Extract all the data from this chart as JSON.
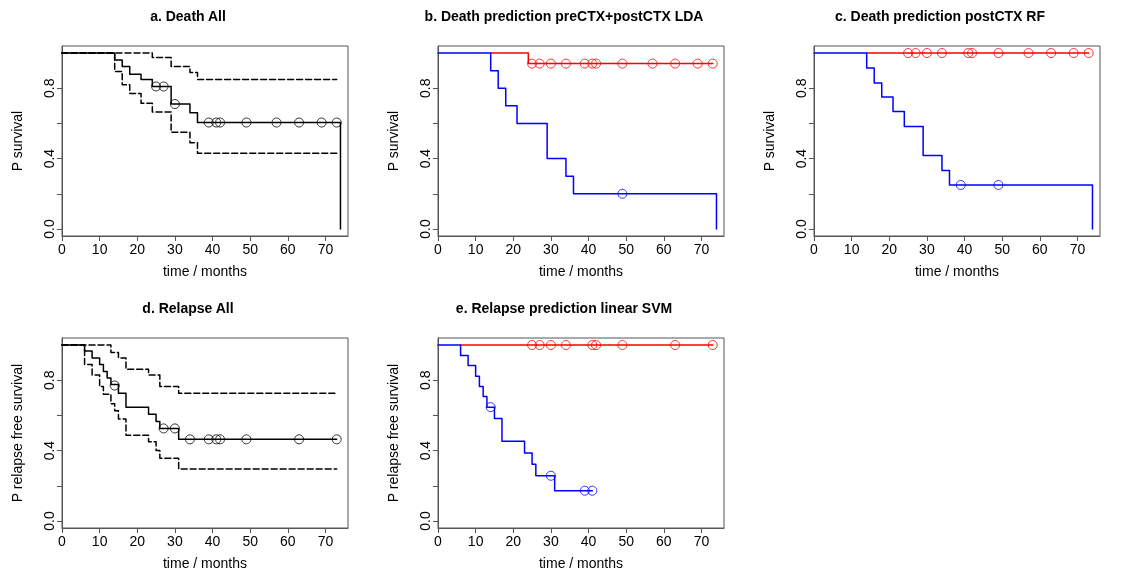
{
  "chart_data": [
    {
      "type": "step",
      "title": "a. Death All",
      "xlabel": "time / months",
      "ylabel": "P survival",
      "xlim": [
        0,
        76
      ],
      "ylim": [
        -0.04,
        1.04
      ],
      "xticks": [
        0,
        10,
        20,
        30,
        40,
        50,
        60,
        70
      ],
      "yticks": [
        {
          "value": 0,
          "label": "0.0"
        },
        {
          "value": 0.2,
          "label": null
        },
        {
          "value": 0.4,
          "label": "0.4"
        },
        {
          "value": 0.6,
          "label": null
        },
        {
          "value": 0.8,
          "label": "0.8"
        }
      ],
      "series": [
        {
          "type": "step",
          "color": "#000000",
          "line_style": "solid",
          "x": [
            0,
            14,
            16,
            18,
            21,
            24,
            29,
            34,
            36,
            74
          ],
          "values": [
            1,
            0.96,
            0.923,
            0.88,
            0.85,
            0.81,
            0.71,
            0.66,
            0.605,
            0
          ]
        },
        {
          "type": "step",
          "color": "#000000",
          "line_style": "dashed",
          "x": [
            0,
            24,
            29,
            34,
            36,
            73
          ],
          "values": [
            1,
            0.975,
            0.923,
            0.89,
            0.85,
            0.85
          ]
        },
        {
          "type": "step",
          "color": "#000000",
          "line_style": "dashed",
          "x": [
            0,
            14,
            16,
            18,
            21,
            24,
            29,
            34,
            36,
            73
          ],
          "values": [
            1,
            0.895,
            0.82,
            0.77,
            0.715,
            0.665,
            0.55,
            0.49,
            0.43,
            0.43
          ]
        },
        {
          "type": "scatter",
          "marker": "circle",
          "color": "#000000",
          "x": [
            25,
            27,
            30,
            39,
            41,
            42,
            49,
            57,
            63,
            69,
            73
          ],
          "values": [
            0.81,
            0.81,
            0.71,
            0.605,
            0.605,
            0.605,
            0.605,
            0.605,
            0.605,
            0.605,
            0.605
          ]
        }
      ]
    },
    {
      "type": "step",
      "title": "b. Death prediction preCTX+postCTX LDA",
      "xlabel": "time / months",
      "ylabel": "P survival",
      "xlim": [
        0,
        76
      ],
      "ylim": [
        -0.04,
        1.04
      ],
      "xticks": [
        0,
        10,
        20,
        30,
        40,
        50,
        60,
        70
      ],
      "yticks": [
        {
          "value": 0,
          "label": "0.0"
        },
        {
          "value": 0.2,
          "label": null
        },
        {
          "value": 0.4,
          "label": "0.4"
        },
        {
          "value": 0.6,
          "label": null
        },
        {
          "value": 0.8,
          "label": "0.8"
        }
      ],
      "series": [
        {
          "type": "step",
          "color": "#ff0000",
          "line_style": "solid",
          "x": [
            14,
            24,
            73
          ],
          "values": [
            1,
            0.94,
            0.94
          ]
        },
        {
          "type": "scatter",
          "marker": "circle",
          "color": "#ff0000",
          "x": [
            25,
            27,
            30,
            34,
            39,
            41,
            42,
            49,
            57,
            63,
            69,
            73
          ],
          "values": [
            0.94,
            0.94,
            0.94,
            0.94,
            0.94,
            0.94,
            0.94,
            0.94,
            0.94,
            0.94,
            0.94,
            0.94
          ]
        },
        {
          "type": "step",
          "color": "#0000ff",
          "line_style": "solid",
          "x": [
            0,
            14,
            16,
            18,
            21,
            29,
            34,
            36,
            74
          ],
          "values": [
            1,
            0.9,
            0.8,
            0.7,
            0.6,
            0.4,
            0.3,
            0.2,
            0
          ]
        },
        {
          "type": "scatter",
          "marker": "circle",
          "color": "#0000ff",
          "x": [
            49
          ],
          "values": [
            0.2
          ]
        }
      ]
    },
    {
      "type": "step",
      "title": "c. Death prediction postCTX RF",
      "xlabel": "time / months",
      "ylabel": "P survival",
      "xlim": [
        0,
        76
      ],
      "ylim": [
        -0.04,
        1.04
      ],
      "xticks": [
        0,
        10,
        20,
        30,
        40,
        50,
        60,
        70
      ],
      "yticks": [
        {
          "value": 0,
          "label": "0.0"
        },
        {
          "value": 0.2,
          "label": null
        },
        {
          "value": 0.4,
          "label": "0.4"
        },
        {
          "value": 0.6,
          "label": null
        },
        {
          "value": 0.8,
          "label": "0.8"
        }
      ],
      "series": [
        {
          "type": "step",
          "color": "#ff0000",
          "line_style": "solid",
          "x": [
            14,
            73
          ],
          "values": [
            1,
            1
          ]
        },
        {
          "type": "scatter",
          "marker": "circle",
          "color": "#ff0000",
          "x": [
            25,
            27,
            30,
            34,
            41,
            42,
            49,
            57,
            63,
            69,
            73
          ],
          "values": [
            1,
            1,
            1,
            1,
            1,
            1,
            1,
            1,
            1,
            1,
            1
          ]
        },
        {
          "type": "step",
          "color": "#0000ff",
          "line_style": "solid",
          "x": [
            0,
            14,
            16,
            18,
            21,
            24,
            29,
            34,
            36,
            74
          ],
          "values": [
            1,
            0.915,
            0.83,
            0.75,
            0.667,
            0.583,
            0.417,
            0.333,
            0.25,
            0
          ]
        },
        {
          "type": "scatter",
          "marker": "circle",
          "color": "#0000ff",
          "x": [
            39,
            49
          ],
          "values": [
            0.25,
            0.25
          ]
        }
      ]
    },
    {
      "type": "step",
      "title": "d. Relapse All",
      "xlabel": "time / months",
      "ylabel": "P relapse free survival",
      "xlim": [
        0,
        76
      ],
      "ylim": [
        -0.04,
        1.04
      ],
      "xticks": [
        0,
        10,
        20,
        30,
        40,
        50,
        60,
        70
      ],
      "yticks": [
        {
          "value": 0,
          "label": "0.0"
        },
        {
          "value": 0.2,
          "label": null
        },
        {
          "value": 0.4,
          "label": "0.4"
        },
        {
          "value": 0.6,
          "label": null
        },
        {
          "value": 0.8,
          "label": "0.8"
        }
      ],
      "series": [
        {
          "type": "step",
          "color": "#000000",
          "line_style": "solid",
          "x": [
            0,
            6,
            8,
            10,
            11,
            12,
            13,
            15,
            17,
            23,
            25,
            26,
            31,
            73
          ],
          "values": [
            1,
            0.966,
            0.926,
            0.89,
            0.85,
            0.813,
            0.776,
            0.726,
            0.647,
            0.606,
            0.566,
            0.526,
            0.464,
            0.464
          ]
        },
        {
          "type": "step",
          "color": "#000000",
          "line_style": "dashed",
          "x": [
            0,
            13,
            15,
            17,
            23,
            26,
            31,
            73
          ],
          "values": [
            1,
            0.957,
            0.926,
            0.862,
            0.83,
            0.764,
            0.726,
            0.726
          ]
        },
        {
          "type": "step",
          "color": "#000000",
          "line_style": "dashed",
          "x": [
            0,
            6,
            8,
            10,
            11,
            13,
            14,
            15,
            17,
            23,
            25,
            26,
            31,
            73
          ],
          "values": [
            1,
            0.89,
            0.83,
            0.764,
            0.72,
            0.666,
            0.626,
            0.58,
            0.487,
            0.45,
            0.4,
            0.357,
            0.296,
            0.296
          ]
        },
        {
          "type": "scatter",
          "marker": "circle",
          "color": "#000000",
          "x": [
            14,
            27,
            30,
            34,
            39,
            41,
            42,
            49,
            63,
            73
          ],
          "values": [
            0.77,
            0.526,
            0.526,
            0.464,
            0.464,
            0.464,
            0.464,
            0.464,
            0.464,
            0.464
          ]
        }
      ]
    },
    {
      "type": "step",
      "title": "e. Relapse prediction linear SVM",
      "xlabel": "time / months",
      "ylabel": "P relapse free survival",
      "xlim": [
        0,
        76
      ],
      "ylim": [
        -0.04,
        1.04
      ],
      "xticks": [
        0,
        10,
        20,
        30,
        40,
        50,
        60,
        70
      ],
      "yticks": [
        {
          "value": 0,
          "label": "0.0"
        },
        {
          "value": 0.2,
          "label": null
        },
        {
          "value": 0.4,
          "label": "0.4"
        },
        {
          "value": 0.6,
          "label": null
        },
        {
          "value": 0.8,
          "label": "0.8"
        }
      ],
      "series": [
        {
          "type": "step",
          "color": "#ff0000",
          "line_style": "solid",
          "x": [
            6,
            73
          ],
          "values": [
            1,
            1
          ]
        },
        {
          "type": "scatter",
          "marker": "circle",
          "color": "#ff0000",
          "x": [
            25,
            27,
            30,
            34,
            41,
            42,
            49,
            63,
            73
          ],
          "values": [
            1,
            1,
            1,
            1,
            1,
            1,
            1,
            1,
            1
          ]
        },
        {
          "type": "step",
          "color": "#0000ff",
          "line_style": "solid",
          "x": [
            0,
            6,
            8,
            10,
            11,
            12,
            13,
            15,
            17,
            23,
            25,
            26,
            31,
            41
          ],
          "values": [
            1,
            0.94,
            0.883,
            0.823,
            0.764,
            0.707,
            0.647,
            0.583,
            0.453,
            0.387,
            0.323,
            0.257,
            0.172,
            0.172
          ]
        },
        {
          "type": "scatter",
          "marker": "circle",
          "color": "#0000ff",
          "x": [
            14,
            30,
            39,
            41
          ],
          "values": [
            0.647,
            0.257,
            0.172,
            0.172
          ]
        }
      ]
    }
  ]
}
